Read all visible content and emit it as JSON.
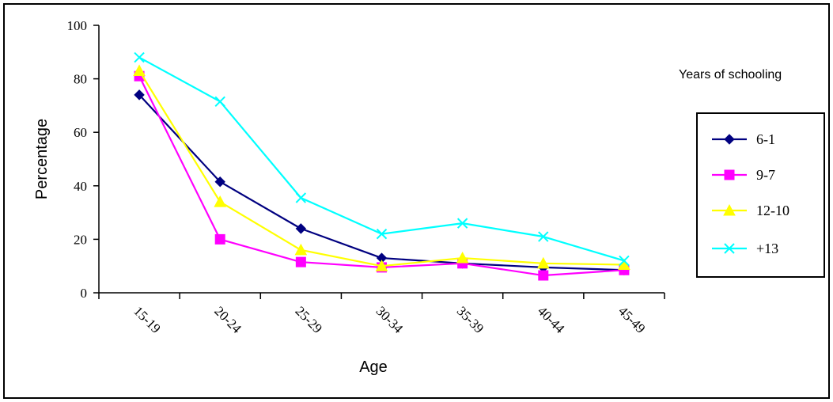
{
  "chart_data": {
    "type": "line",
    "categories": [
      "15-19",
      "20-24",
      "25-29",
      "30-34",
      "35-39",
      "40-44",
      "45-49"
    ],
    "series": [
      {
        "name": "6-1",
        "color": "#000080",
        "marker": "diamond",
        "values": [
          74,
          41.5,
          24,
          13,
          11,
          9.5,
          8.5
        ]
      },
      {
        "name": "9-7",
        "color": "#ff00ff",
        "marker": "square",
        "values": [
          81,
          20,
          11.5,
          9.5,
          11,
          6.5,
          8.5
        ]
      },
      {
        "name": "12-10",
        "color": "#ffff00",
        "marker": "triangle",
        "values": [
          83,
          34,
          16,
          10,
          13,
          11,
          10.5
        ]
      },
      {
        "name": "+13",
        "color": "#00ffff",
        "marker": "x",
        "values": [
          88,
          71.5,
          35.5,
          22,
          26,
          21,
          12
        ]
      }
    ],
    "title": "",
    "xlabel": "Age",
    "ylabel": "Percentage",
    "ylim": [
      0,
      100
    ],
    "yticks": [
      0,
      20,
      40,
      60,
      80,
      100
    ],
    "legend_title": "Years of schooling",
    "legend_position": "right",
    "grid": false
  }
}
